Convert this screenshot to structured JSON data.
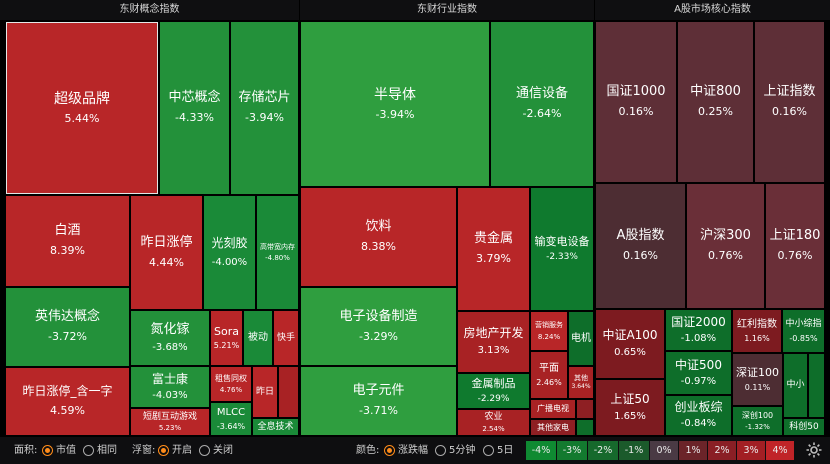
{
  "headers": [
    "东财概念指数",
    "东财行业指数",
    "A股市场核心指数"
  ],
  "tiles": [
    {
      "id": "超级品牌",
      "name": "超级品牌",
      "value": "5.44%",
      "color": "#b82628"
    },
    {
      "id": "中芯概念",
      "name": "中芯概念",
      "value": "-4.33%",
      "color": "#23913a"
    },
    {
      "id": "存储芯片",
      "name": "存储芯片",
      "value": "-3.94%",
      "color": "#23913a"
    },
    {
      "id": "白酒",
      "name": "白酒",
      "value": "8.39%",
      "color": "#b82628"
    },
    {
      "id": "昨日涨停",
      "name": "昨日涨停",
      "value": "4.44%",
      "color": "#b82628"
    },
    {
      "id": "光刻胶",
      "name": "光刻胶",
      "value": "-4.00%",
      "color": "#1a8a38"
    },
    {
      "id": "高带宽内存",
      "name": "高带宽内存",
      "value": "-4.80%",
      "color": "#1a8a38"
    },
    {
      "id": "英伟达概念",
      "name": "英伟达概念",
      "value": "-3.72%",
      "color": "#23913a"
    },
    {
      "id": "氮化镓",
      "name": "氮化镓",
      "value": "-3.68%",
      "color": "#23913a"
    },
    {
      "id": "Sora",
      "name": "Sora",
      "value": "5.21%",
      "color": "#b82628"
    },
    {
      "id": "被动",
      "name": "被动",
      "value": "",
      "color": "#1a8a38"
    },
    {
      "id": "快手",
      "name": "快手",
      "value": "",
      "color": "#b82628"
    },
    {
      "id": "昨日涨停_含一字",
      "name": "昨日涨停_含一字",
      "value": "4.59%",
      "color": "#b82628"
    },
    {
      "id": "富士康",
      "name": "富士康",
      "value": "-4.03%",
      "color": "#23913a"
    },
    {
      "id": "租售同权",
      "name": "租售同权",
      "value": "4.76%",
      "color": "#b82628"
    },
    {
      "id": "昨日",
      "name": "昨日",
      "value": "",
      "color": "#b82628"
    },
    {
      "id": "短剧互动游戏",
      "name": "短剧互动游戏",
      "value": "5.23%",
      "color": "#b82628"
    },
    {
      "id": "MLCC",
      "name": "MLCC",
      "value": "-3.64%",
      "color": "#1a8a38"
    },
    {
      "id": "全息技术",
      "name": "全息技术",
      "value": "",
      "color": "#1a8a38"
    },
    {
      "id": "半导体",
      "name": "半导体",
      "value": "-3.94%",
      "color": "#2f9e3f"
    },
    {
      "id": "通信设备",
      "name": "通信设备",
      "value": "-2.64%",
      "color": "#23913a"
    },
    {
      "id": "饮料",
      "name": "饮料",
      "value": "8.38%",
      "color": "#b82628"
    },
    {
      "id": "贵金属",
      "name": "贵金属",
      "value": "3.79%",
      "color": "#b82628"
    },
    {
      "id": "输变电设备",
      "name": "输变电设备",
      "value": "-2.33%",
      "color": "#0f7a2e"
    },
    {
      "id": "电子设备制造",
      "name": "电子设备制造",
      "value": "-3.29%",
      "color": "#2f9e3f"
    },
    {
      "id": "房地产开发",
      "name": "房地产开发",
      "value": "3.13%",
      "color": "#a82224"
    },
    {
      "id": "营销服务",
      "name": "营销服务",
      "value": "8.24%",
      "color": "#b82628"
    },
    {
      "id": "电机",
      "name": "电机",
      "value": "",
      "color": "#0e6e2a"
    },
    {
      "id": "电子元件",
      "name": "电子元件",
      "value": "-3.71%",
      "color": "#2f9e3f"
    },
    {
      "id": "平面",
      "name": "平面",
      "value": "2.46%",
      "color": "#a82224"
    },
    {
      "id": "其他",
      "name": "其他",
      "value": "3.64%",
      "color": "#a82224"
    },
    {
      "id": "金属制品",
      "name": "金属制品",
      "value": "-2.29%",
      "color": "#0f7a2e"
    },
    {
      "id": "广播电视",
      "name": "广播电视",
      "value": "",
      "color": "#a82224"
    },
    {
      "id": "农业",
      "name": "农业",
      "value": "2.54%",
      "color": "#a82224"
    },
    {
      "id": "其他家电",
      "name": "其他家电",
      "value": "",
      "color": "#8e1f23"
    },
    {
      "id": "国证1000",
      "name": "国证1000",
      "value": "0.16%",
      "color": "#5e2f37"
    },
    {
      "id": "中证800",
      "name": "中证800",
      "value": "0.25%",
      "color": "#5e2f37"
    },
    {
      "id": "上证指数",
      "name": "上证指数",
      "value": "0.16%",
      "color": "#5e2f37"
    },
    {
      "id": "A股指数",
      "name": "A股指数",
      "value": "0.16%",
      "color": "#4d2d33"
    },
    {
      "id": "沪深300",
      "name": "沪深300",
      "value": "0.76%",
      "color": "#6a2f38"
    },
    {
      "id": "上证180",
      "name": "上证180",
      "value": "0.76%",
      "color": "#6a2f38"
    },
    {
      "id": "中证A100",
      "name": "中证A100",
      "value": "0.65%",
      "color": "#7d1b20"
    },
    {
      "id": "国证2000",
      "name": "国证2000",
      "value": "-1.08%",
      "color": "#0e6e2a"
    },
    {
      "id": "红利指数",
      "name": "红利指数",
      "value": "1.16%",
      "color": "#7d1b20"
    },
    {
      "id": "中小综指",
      "name": "中小综指",
      "value": "-0.85%",
      "color": "#0e6e2a"
    },
    {
      "id": "中证500",
      "name": "中证500",
      "value": "-0.97%",
      "color": "#0e6e2a"
    },
    {
      "id": "上证50",
      "name": "上证50",
      "value": "1.65%",
      "color": "#7d1b20"
    },
    {
      "id": "深证100",
      "name": "深证100",
      "value": "0.11%",
      "color": "#4d2d33"
    },
    {
      "id": "中小",
      "name": "中小",
      "value": "",
      "color": "#0e6e2a"
    },
    {
      "id": "创业板综",
      "name": "创业板综",
      "value": "-0.84%",
      "color": "#0e6e2a"
    },
    {
      "id": "深创100",
      "name": "深创100",
      "value": "-1.32%",
      "color": "#0e6e2a"
    },
    {
      "id": "科创50",
      "name": "科创50",
      "value": "",
      "color": "#0e6e2a"
    }
  ],
  "toolbar": {
    "area_label": "面积:",
    "area_options": [
      "市值",
      "相同"
    ],
    "area_selected": "市值",
    "float_label": "浮窗:",
    "float_options": [
      "开启",
      "关闭"
    ],
    "float_selected": "开启",
    "color_label": "颜色:",
    "color_options": [
      "涨跌幅",
      "5分钟",
      "5日"
    ],
    "color_selected": "涨跌幅",
    "scale": [
      {
        "label": "-4%",
        "color": "#0f8a32"
      },
      {
        "label": "-3%",
        "color": "#137a2f"
      },
      {
        "label": "-2%",
        "color": "#16692c"
      },
      {
        "label": "-1%",
        "color": "#1b5a2b"
      },
      {
        "label": "0%",
        "color": "#4a3a44"
      },
      {
        "label": "1%",
        "color": "#6b2429"
      },
      {
        "label": "2%",
        "color": "#8a1f25"
      },
      {
        "label": "3%",
        "color": "#a21f24"
      },
      {
        "label": "4%",
        "color": "#c02428"
      }
    ],
    "settings_icon": "gear-icon"
  }
}
